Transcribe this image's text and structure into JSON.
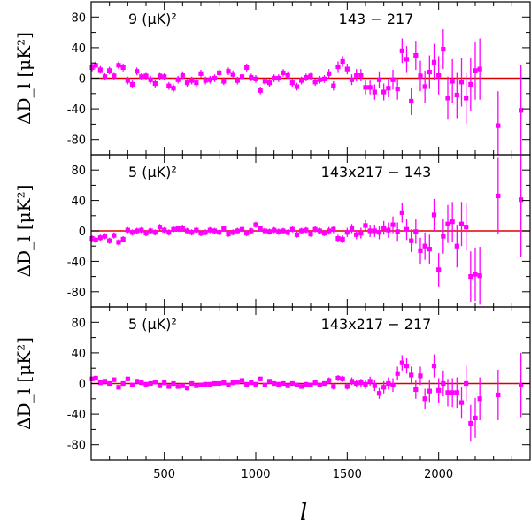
{
  "colors": {
    "points": "#ff00ff",
    "zero_line": "#dd0000",
    "axes": "#000000"
  },
  "chart_data": [
    {
      "type": "scatter",
      "panel": "top",
      "noise_label": "9  (μK)²",
      "title": "143 − 217",
      "ylabel": "ΔD_l [μK²]",
      "xlabel": "l",
      "xlim": [
        100,
        2500
      ],
      "ylim": [
        -100,
        100
      ],
      "x_ticks": [],
      "y_ticks": [
        "80",
        "40",
        "0",
        "-40",
        "-80"
      ],
      "y_tick_values": [
        80,
        40,
        0,
        -40,
        -80
      ],
      "x": [
        105,
        125,
        150,
        175,
        200,
        225,
        250,
        275,
        300,
        325,
        350,
        375,
        400,
        425,
        450,
        475,
        500,
        525,
        550,
        575,
        600,
        625,
        650,
        675,
        700,
        725,
        750,
        775,
        800,
        825,
        850,
        875,
        900,
        925,
        950,
        975,
        1000,
        1025,
        1050,
        1075,
        1100,
        1125,
        1150,
        1175,
        1200,
        1225,
        1250,
        1275,
        1300,
        1325,
        1350,
        1375,
        1400,
        1425,
        1450,
        1475,
        1500,
        1525,
        1550,
        1575,
        1600,
        1625,
        1650,
        1675,
        1700,
        1725,
        1750,
        1775,
        1800,
        1825,
        1850,
        1875,
        1900,
        1925,
        1950,
        1975,
        2000,
        2025,
        2050,
        2075,
        2100,
        2125,
        2150,
        2175,
        2200,
        2225,
        2325,
        2450
      ],
      "y": [
        14,
        17,
        11,
        2,
        10,
        3,
        17,
        14,
        -3,
        -8,
        9,
        2,
        3,
        -2,
        -7,
        3,
        2,
        -10,
        -13,
        -2,
        4,
        -6,
        -3,
        -6,
        6,
        -3,
        -2,
        0,
        7,
        -4,
        9,
        5,
        -3,
        2,
        14,
        1,
        -1,
        -16,
        -4,
        -6,
        0,
        0,
        7,
        4,
        -6,
        -11,
        -3,
        1,
        3,
        -5,
        -2,
        -1,
        6,
        -10,
        15,
        22,
        12,
        -2,
        4,
        4,
        -12,
        -12,
        -18,
        -2,
        -18,
        -13,
        -2,
        -14,
        36,
        25,
        -30,
        30,
        3,
        -11,
        8,
        21,
        4,
        38,
        -26,
        -4,
        -22,
        -5,
        -26,
        -8,
        10,
        12,
        -62,
        -42
      ],
      "err": [
        5,
        5,
        5,
        5,
        5,
        5,
        5,
        5,
        5,
        5,
        5,
        5,
        5,
        5,
        5,
        5,
        5,
        5,
        5,
        5,
        5,
        5,
        5,
        5,
        5,
        5,
        5,
        5,
        5,
        5,
        5,
        5,
        5,
        5,
        5,
        5,
        5,
        5,
        5,
        5,
        5,
        5,
        5,
        5,
        5,
        5,
        5,
        5,
        5,
        5,
        5,
        5,
        6,
        6,
        7,
        7,
        7,
        7,
        8,
        8,
        9,
        9,
        10,
        11,
        11,
        12,
        13,
        14,
        16,
        17,
        18,
        19,
        20,
        21,
        22,
        24,
        25,
        26,
        28,
        29,
        30,
        32,
        34,
        35,
        38,
        40,
        45,
        60
      ]
    },
    {
      "type": "scatter",
      "panel": "middle",
      "noise_label": "5  (μK)²",
      "title": "143x217 − 143",
      "ylabel": "ΔD_l [μK²]",
      "xlabel": "l",
      "xlim": [
        100,
        2500
      ],
      "ylim": [
        -100,
        100
      ],
      "x_ticks": [],
      "y_ticks": [
        "80",
        "40",
        "0",
        "-40",
        "-80"
      ],
      "y_tick_values": [
        80,
        40,
        0,
        -40,
        -80
      ],
      "x": [
        105,
        125,
        150,
        175,
        200,
        225,
        250,
        275,
        300,
        325,
        350,
        375,
        400,
        425,
        450,
        475,
        500,
        525,
        550,
        575,
        600,
        625,
        650,
        675,
        700,
        725,
        750,
        775,
        800,
        825,
        850,
        875,
        900,
        925,
        950,
        975,
        1000,
        1025,
        1050,
        1075,
        1100,
        1125,
        1150,
        1175,
        1200,
        1225,
        1250,
        1275,
        1300,
        1325,
        1350,
        1375,
        1400,
        1425,
        1450,
        1475,
        1500,
        1525,
        1550,
        1575,
        1600,
        1625,
        1650,
        1675,
        1700,
        1725,
        1750,
        1775,
        1800,
        1825,
        1850,
        1875,
        1900,
        1925,
        1950,
        1975,
        2000,
        2025,
        2050,
        2075,
        2100,
        2125,
        2150,
        2175,
        2200,
        2225,
        2325,
        2450
      ],
      "y": [
        -10,
        -12,
        -9,
        -7,
        -13,
        -6,
        -15,
        -11,
        1,
        -2,
        0,
        1,
        -3,
        0,
        -2,
        5,
        1,
        -2,
        2,
        3,
        4,
        0,
        -2,
        1,
        -3,
        -2,
        1,
        0,
        -2,
        3,
        -4,
        -2,
        0,
        2,
        -3,
        0,
        8,
        3,
        0,
        -1,
        1,
        -1,
        0,
        -2,
        2,
        -5,
        0,
        1,
        -4,
        2,
        0,
        -3,
        0,
        2,
        -10,
        -11,
        -2,
        3,
        -5,
        -3,
        7,
        0,
        0,
        -2,
        4,
        1,
        8,
        -1,
        24,
        2,
        -13,
        -1,
        -26,
        -20,
        -24,
        21,
        -51,
        -7,
        9,
        12,
        -20,
        9,
        5,
        -60,
        -57,
        -59,
        46,
        41
      ],
      "err": [
        4,
        4,
        4,
        4,
        4,
        4,
        4,
        4,
        4,
        4,
        4,
        4,
        4,
        4,
        4,
        4,
        4,
        4,
        4,
        4,
        4,
        4,
        4,
        4,
        4,
        4,
        4,
        4,
        4,
        4,
        4,
        4,
        4,
        4,
        4,
        4,
        4,
        4,
        4,
        4,
        4,
        4,
        4,
        4,
        4,
        4,
        4,
        4,
        4,
        4,
        4,
        4,
        5,
        5,
        5,
        5,
        6,
        6,
        6,
        7,
        7,
        8,
        8,
        9,
        9,
        10,
        11,
        12,
        13,
        14,
        15,
        16,
        17,
        18,
        19,
        21,
        22,
        23,
        25,
        26,
        28,
        29,
        31,
        33,
        35,
        38,
        50,
        75
      ]
    },
    {
      "type": "scatter",
      "panel": "bottom",
      "noise_label": "5  (μK)²",
      "title": "143x217 − 217",
      "ylabel": "ΔD_l [μK²]",
      "xlabel": "l",
      "xlim": [
        100,
        2500
      ],
      "ylim": [
        -100,
        100
      ],
      "x_ticks": [
        "500",
        "1000",
        "1500",
        "2000"
      ],
      "x_tick_values": [
        500,
        1000,
        1500,
        2000
      ],
      "y_ticks": [
        "80",
        "40",
        "0",
        "-40",
        "-80"
      ],
      "y_tick_values": [
        80,
        40,
        0,
        -40,
        -80
      ],
      "x": [
        105,
        125,
        150,
        175,
        200,
        225,
        250,
        275,
        300,
        325,
        350,
        375,
        400,
        425,
        450,
        475,
        500,
        525,
        550,
        575,
        600,
        625,
        650,
        675,
        700,
        725,
        750,
        775,
        800,
        825,
        850,
        875,
        900,
        925,
        950,
        975,
        1000,
        1025,
        1050,
        1075,
        1100,
        1125,
        1150,
        1175,
        1200,
        1225,
        1250,
        1275,
        1300,
        1325,
        1350,
        1375,
        1400,
        1425,
        1450,
        1475,
        1500,
        1525,
        1550,
        1575,
        1600,
        1625,
        1650,
        1675,
        1700,
        1725,
        1750,
        1775,
        1800,
        1825,
        1850,
        1875,
        1900,
        1925,
        1950,
        1975,
        2000,
        2025,
        2050,
        2075,
        2100,
        2125,
        2150,
        2175,
        2200,
        2225,
        2325,
        2450
      ],
      "y": [
        6,
        7,
        1,
        3,
        0,
        5,
        -5,
        0,
        6,
        -2,
        3,
        1,
        -1,
        0,
        2,
        -3,
        1,
        -4,
        0,
        -4,
        -3,
        -6,
        0,
        -3,
        -2,
        -1,
        -1,
        0,
        0,
        1,
        -2,
        1,
        2,
        4,
        -1,
        1,
        -1,
        6,
        -2,
        3,
        0,
        -1,
        0,
        -3,
        0,
        -2,
        -4,
        -1,
        -2,
        1,
        -2,
        0,
        4,
        -4,
        7,
        6,
        -4,
        3,
        0,
        1,
        -1,
        3,
        -3,
        -13,
        -5,
        0,
        -2,
        13,
        27,
        23,
        11,
        -8,
        10,
        -20,
        -10,
        23,
        -9,
        0,
        -12,
        -12,
        -12,
        -25,
        0,
        -52,
        -45,
        -20,
        -15,
        -2
      ],
      "err": [
        3,
        3,
        3,
        3,
        3,
        3,
        3,
        3,
        3,
        3,
        3,
        3,
        3,
        3,
        3,
        3,
        3,
        3,
        3,
        3,
        3,
        3,
        3,
        3,
        3,
        3,
        3,
        3,
        3,
        3,
        3,
        3,
        3,
        3,
        3,
        3,
        3,
        3,
        3,
        3,
        3,
        3,
        3,
        3,
        3,
        3,
        3,
        3,
        3,
        3,
        3,
        3,
        4,
        4,
        4,
        4,
        4,
        5,
        5,
        5,
        6,
        6,
        7,
        7,
        8,
        8,
        9,
        9,
        10,
        10,
        11,
        12,
        12,
        13,
        14,
        15,
        16,
        17,
        18,
        19,
        20,
        21,
        23,
        24,
        26,
        28,
        33,
        42
      ]
    }
  ]
}
